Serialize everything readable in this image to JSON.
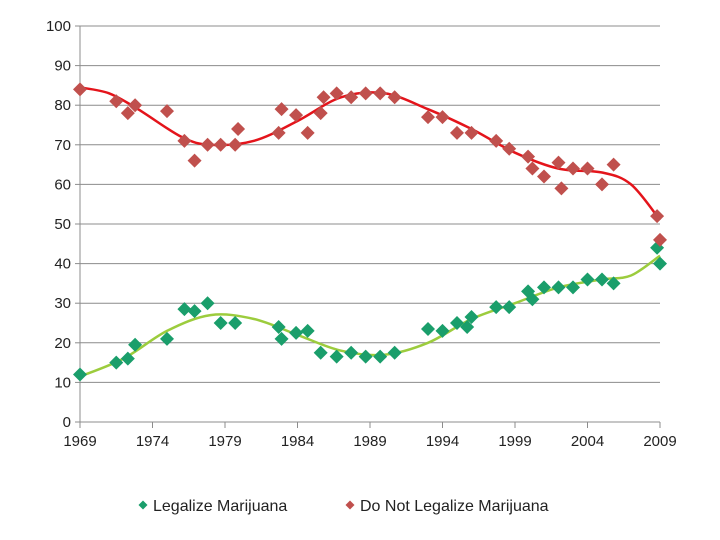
{
  "chart_data": {
    "type": "scatter",
    "title": "",
    "xlabel": "",
    "ylabel": "",
    "xlim": [
      1969,
      2009
    ],
    "ylim": [
      0,
      100
    ],
    "x_ticks": [
      1969,
      1974,
      1979,
      1984,
      1989,
      1994,
      1999,
      2004,
      2009
    ],
    "y_ticks": [
      0,
      10,
      20,
      30,
      40,
      50,
      60,
      70,
      80,
      90,
      100
    ],
    "grid": "horizontal",
    "legend_position": "bottom",
    "series": [
      {
        "name": "Legalize Marijuana",
        "marker": "diamond",
        "color": "#1a9e6b",
        "trend_color": "#9ccc3d",
        "points": [
          [
            1969,
            12
          ],
          [
            1971.5,
            15
          ],
          [
            1972.3,
            16
          ],
          [
            1972.8,
            19.5
          ],
          [
            1975,
            21
          ],
          [
            1976.2,
            28.5
          ],
          [
            1976.9,
            28
          ],
          [
            1977.8,
            30
          ],
          [
            1978.7,
            25
          ],
          [
            1979.7,
            25
          ],
          [
            1982.7,
            24
          ],
          [
            1982.9,
            21
          ],
          [
            1983.9,
            22.5
          ],
          [
            1984.7,
            23
          ],
          [
            1985.6,
            17.5
          ],
          [
            1986.7,
            16.5
          ],
          [
            1987.7,
            17.5
          ],
          [
            1988.7,
            16.5
          ],
          [
            1989.7,
            16.5
          ],
          [
            1990.7,
            17.5
          ],
          [
            1993,
            23.5
          ],
          [
            1994,
            23
          ],
          [
            1995,
            25
          ],
          [
            1995.7,
            24
          ],
          [
            1996,
            26.5
          ],
          [
            1997.7,
            29
          ],
          [
            1998.6,
            29
          ],
          [
            1999.9,
            33
          ],
          [
            2000.2,
            31
          ],
          [
            2001,
            34
          ],
          [
            2002,
            34
          ],
          [
            2003,
            34
          ],
          [
            2004,
            36
          ],
          [
            2005,
            36
          ],
          [
            2005.8,
            35
          ],
          [
            2008.8,
            44
          ],
          [
            2009,
            40
          ]
        ],
        "trend": [
          [
            1969,
            11.5
          ],
          [
            1972,
            16
          ],
          [
            1975,
            23
          ],
          [
            1978,
            27
          ],
          [
            1981,
            26
          ],
          [
            1984,
            22
          ],
          [
            1987,
            18
          ],
          [
            1990,
            17
          ],
          [
            1993,
            20
          ],
          [
            1996,
            26
          ],
          [
            1999,
            30
          ],
          [
            2002,
            34
          ],
          [
            2005,
            36
          ],
          [
            2007,
            37
          ],
          [
            2009,
            42
          ]
        ]
      },
      {
        "name": "Do Not Legalize Marijuana",
        "marker": "diamond",
        "color": "#c0504d",
        "trend_color": "#e4141b",
        "points": [
          [
            1969,
            84
          ],
          [
            1971.5,
            81
          ],
          [
            1972.3,
            78
          ],
          [
            1972.8,
            80
          ],
          [
            1975,
            78.5
          ],
          [
            1976.2,
            71
          ],
          [
            1976.9,
            66
          ],
          [
            1977.8,
            70
          ],
          [
            1978.7,
            70
          ],
          [
            1979.7,
            70
          ],
          [
            1979.9,
            74
          ],
          [
            1982.7,
            73
          ],
          [
            1982.9,
            79
          ],
          [
            1983.9,
            77.5
          ],
          [
            1984.7,
            73
          ],
          [
            1985.6,
            78
          ],
          [
            1985.8,
            82
          ],
          [
            1986.7,
            83
          ],
          [
            1987.7,
            82
          ],
          [
            1988.7,
            83
          ],
          [
            1989.7,
            83
          ],
          [
            1990.7,
            82
          ],
          [
            1993,
            77
          ],
          [
            1994,
            77
          ],
          [
            1995,
            73
          ],
          [
            1996,
            73
          ],
          [
            1997.7,
            71
          ],
          [
            1998.6,
            69
          ],
          [
            1999.9,
            67
          ],
          [
            2000.2,
            64
          ],
          [
            2001,
            62
          ],
          [
            2002,
            65.5
          ],
          [
            2002.2,
            59
          ],
          [
            2003,
            64
          ],
          [
            2004,
            64
          ],
          [
            2005,
            60
          ],
          [
            2005.8,
            65
          ],
          [
            2008.8,
            52
          ],
          [
            2009,
            46
          ]
        ],
        "trend": [
          [
            1969,
            84.5
          ],
          [
            1971,
            83
          ],
          [
            1973,
            79
          ],
          [
            1976,
            72
          ],
          [
            1978,
            70
          ],
          [
            1981,
            71
          ],
          [
            1984,
            76
          ],
          [
            1987,
            82
          ],
          [
            1990,
            83
          ],
          [
            1993,
            79
          ],
          [
            1996,
            74
          ],
          [
            1999,
            68
          ],
          [
            2002,
            64
          ],
          [
            2005,
            63
          ],
          [
            2007,
            60
          ],
          [
            2009,
            51
          ]
        ]
      }
    ]
  }
}
